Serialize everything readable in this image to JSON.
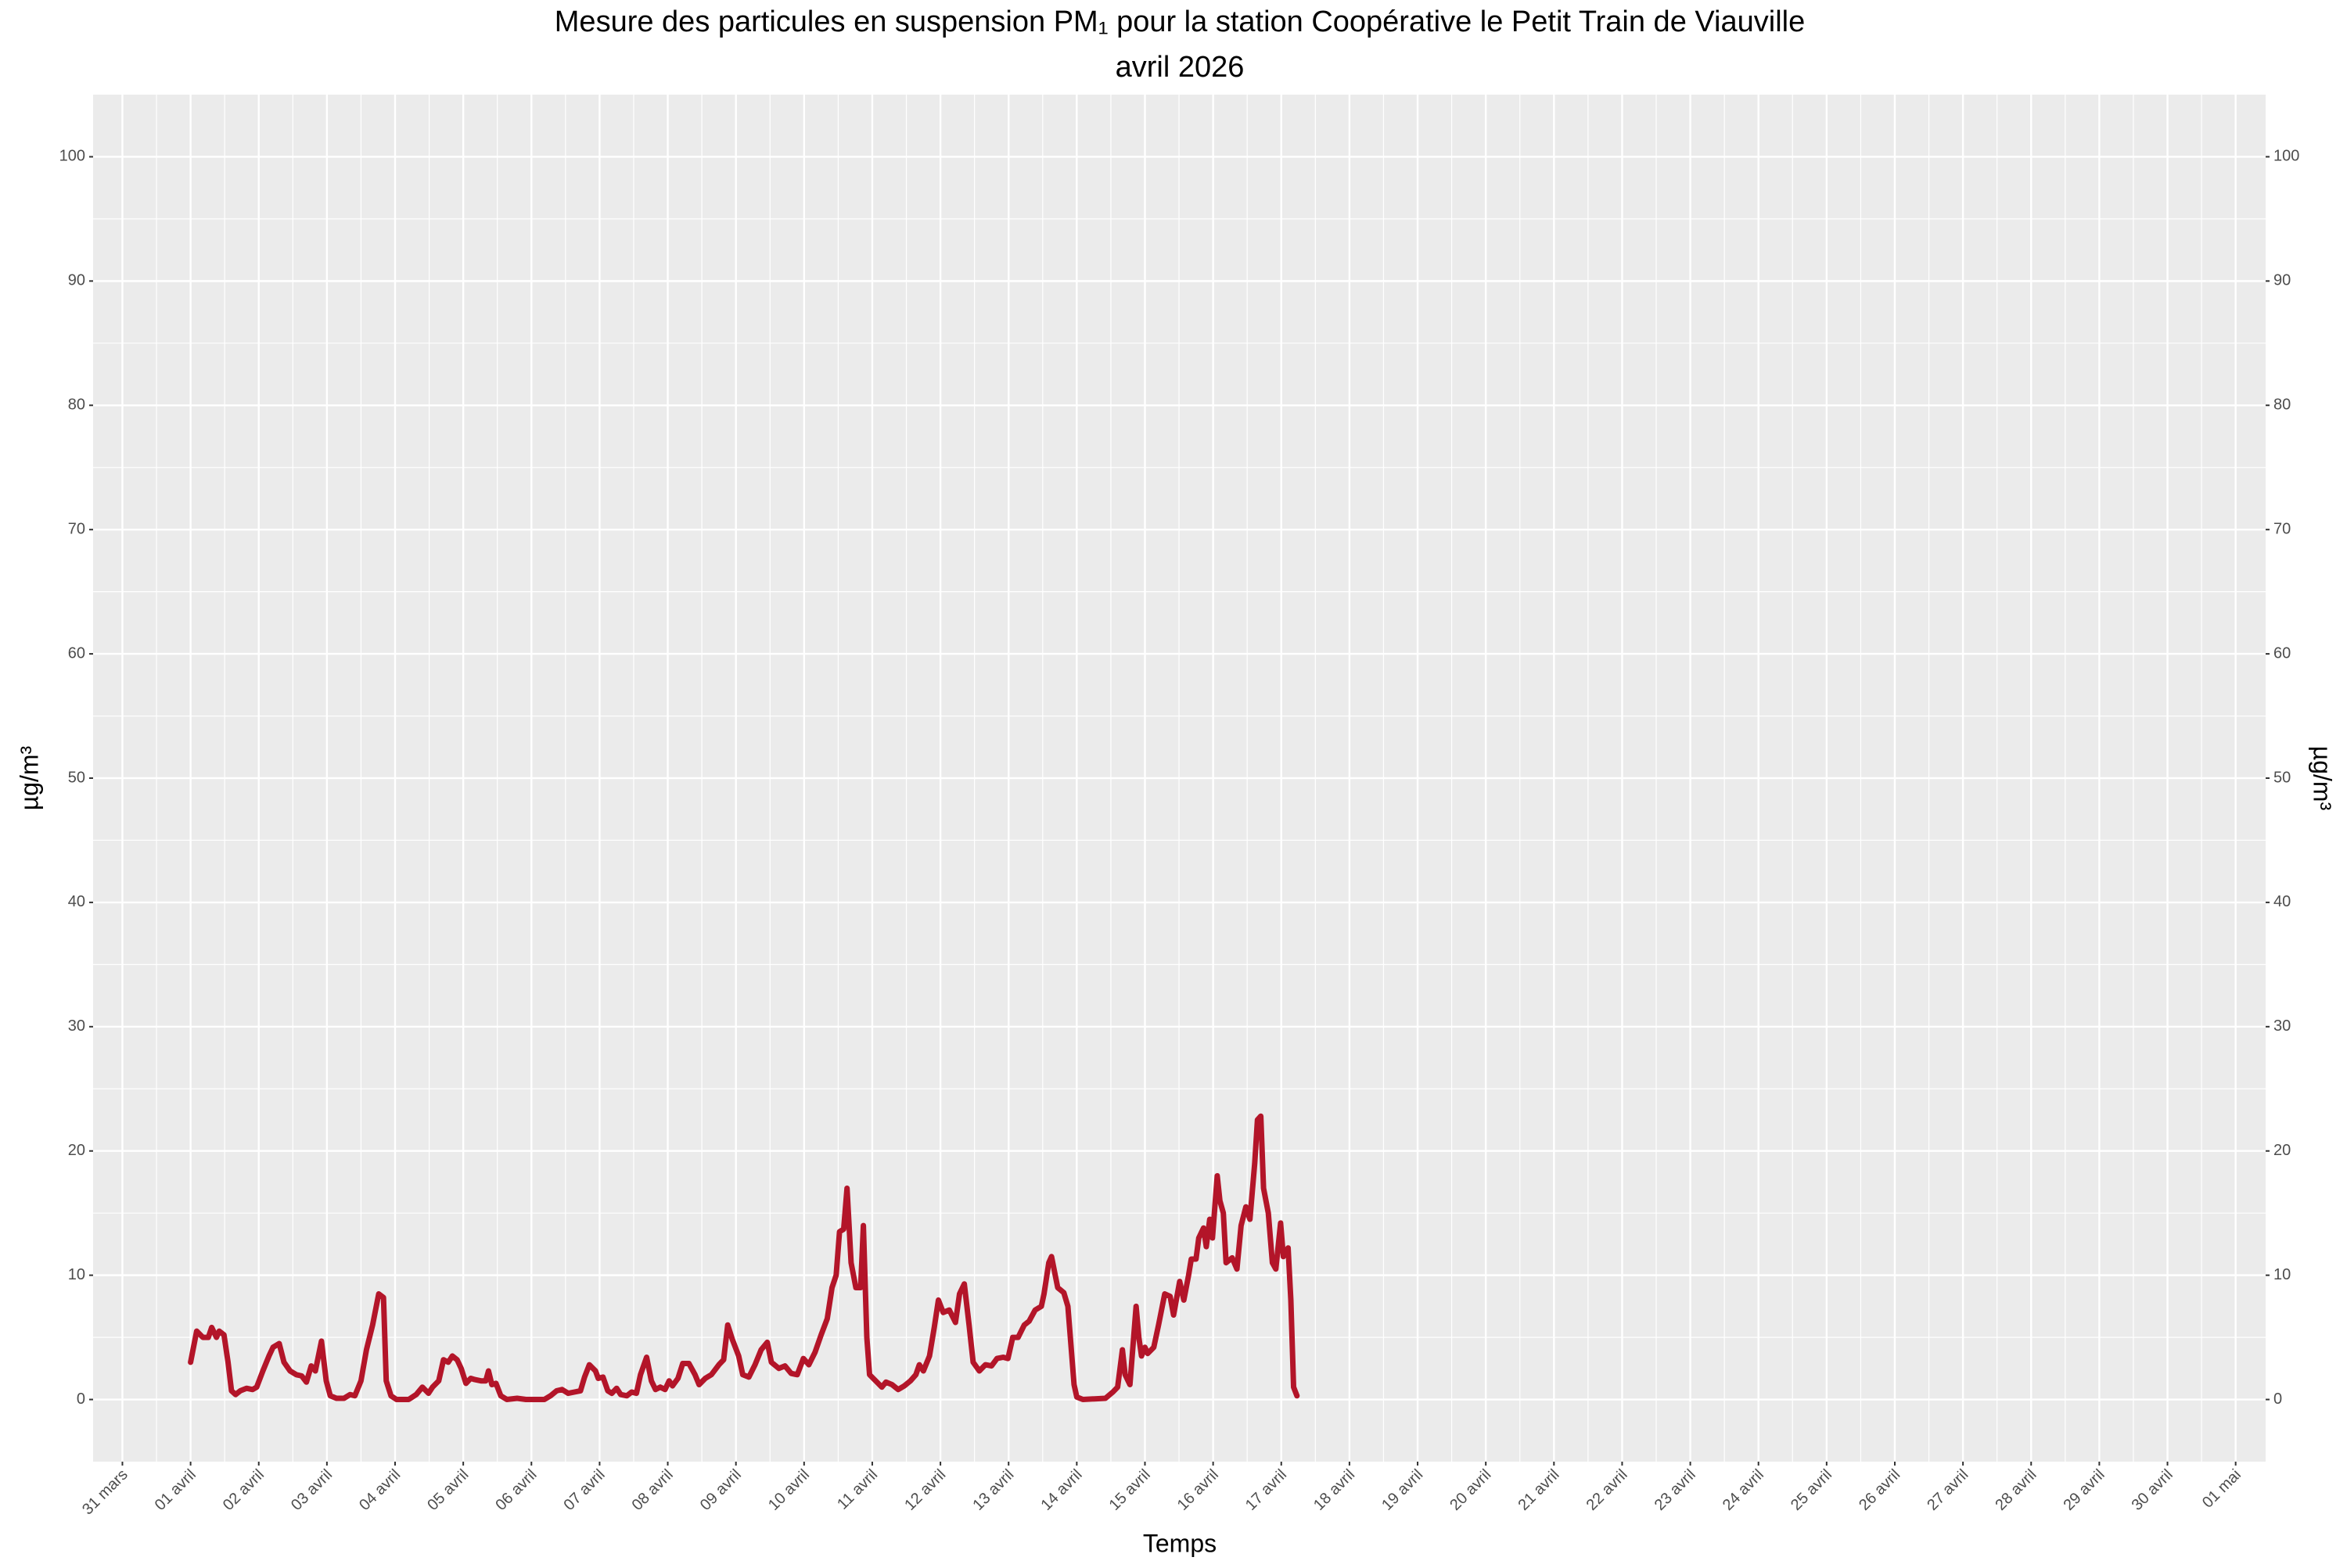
{
  "chart_data": {
    "type": "line",
    "title": "Mesure des particules en suspension  PM₁  pour la station Coopérative le Petit Train de Viauville",
    "subtitle": "avril 2026",
    "x_label": "Temps",
    "y_label": "µg/m³",
    "y2_label": "µg/m³",
    "color": "#b31529",
    "grid": true,
    "xlim": [
      -1.43,
      30.44
    ],
    "ylim": [
      -5,
      105
    ],
    "y2lim": [
      -5,
      105
    ],
    "yticks": [
      0,
      10,
      20,
      30,
      40,
      50,
      60,
      70,
      80,
      90,
      100
    ],
    "y2ticks": [
      0,
      10,
      20,
      30,
      40,
      50,
      60,
      70,
      80,
      90,
      100
    ],
    "xticks": [
      {
        "value": -1,
        "label": "31 mars"
      },
      {
        "value": 0,
        "label": "01 avril"
      },
      {
        "value": 1,
        "label": "02 avril"
      },
      {
        "value": 2,
        "label": "03 avril"
      },
      {
        "value": 3,
        "label": "04 avril"
      },
      {
        "value": 4,
        "label": "05 avril"
      },
      {
        "value": 5,
        "label": "06 avril"
      },
      {
        "value": 6,
        "label": "07 avril"
      },
      {
        "value": 7,
        "label": "08 avril"
      },
      {
        "value": 8,
        "label": "09 avril"
      },
      {
        "value": 9,
        "label": "10 avril"
      },
      {
        "value": 10,
        "label": "11 avril"
      },
      {
        "value": 11,
        "label": "12 avril"
      },
      {
        "value": 12,
        "label": "13 avril"
      },
      {
        "value": 13,
        "label": "14 avril"
      },
      {
        "value": 14,
        "label": "15 avril"
      },
      {
        "value": 15,
        "label": "16 avril"
      },
      {
        "value": 16,
        "label": "17 avril"
      },
      {
        "value": 17,
        "label": "18 avril"
      },
      {
        "value": 18,
        "label": "19 avril"
      },
      {
        "value": 19,
        "label": "20 avril"
      },
      {
        "value": 20,
        "label": "21 avril"
      },
      {
        "value": 21,
        "label": "22 avril"
      },
      {
        "value": 22,
        "label": "23 avril"
      },
      {
        "value": 23,
        "label": "24 avril"
      },
      {
        "value": 24,
        "label": "25 avril"
      },
      {
        "value": 25,
        "label": "26 avril"
      },
      {
        "value": 26,
        "label": "27 avril"
      },
      {
        "value": 27,
        "label": "28 avril"
      },
      {
        "value": 28,
        "label": "29 avril"
      },
      {
        "value": 29,
        "label": "30 avril"
      },
      {
        "value": 30,
        "label": "01 mai"
      }
    ],
    "x": [
      0,
      0.09,
      0.18,
      0.26,
      0.31,
      0.38,
      0.42,
      0.49,
      0.55,
      0.6,
      0.66,
      0.73,
      0.82,
      0.91,
      0.97,
      1.06,
      1.15,
      1.21,
      1.3,
      1.37,
      1.46,
      1.55,
      1.63,
      1.7,
      1.77,
      1.83,
      1.92,
      1.99,
      2.05,
      2.14,
      2.25,
      2.34,
      2.41,
      2.5,
      2.58,
      2.67,
      2.76,
      2.83,
      2.87,
      2.94,
      3.02,
      3.2,
      3.31,
      3.4,
      3.49,
      3.55,
      3.64,
      3.71,
      3.78,
      3.84,
      3.91,
      3.97,
      4.04,
      4.11,
      4.17,
      4.26,
      4.33,
      4.37,
      4.42,
      4.48,
      4.55,
      4.64,
      4.79,
      4.92,
      5.19,
      5.28,
      5.37,
      5.45,
      5.54,
      5.63,
      5.72,
      5.78,
      5.85,
      5.94,
      5.98,
      6.05,
      6.12,
      6.18,
      6.25,
      6.31,
      6.4,
      6.47,
      6.54,
      6.6,
      6.69,
      6.76,
      6.82,
      6.89,
      6.96,
      7.02,
      7.07,
      7.15,
      7.22,
      7.31,
      7.4,
      7.46,
      7.55,
      7.64,
      7.75,
      7.82,
      7.88,
      7.95,
      8.04,
      8.1,
      8.19,
      8.28,
      8.37,
      8.46,
      8.52,
      8.63,
      8.72,
      8.81,
      8.9,
      8.99,
      9.07,
      9.16,
      9.25,
      9.34,
      9.41,
      9.47,
      9.52,
      9.58,
      9.63,
      9.69,
      9.76,
      9.83,
      9.87,
      9.92,
      9.96,
      10.05,
      10.14,
      10.2,
      10.29,
      10.38,
      10.47,
      10.56,
      10.64,
      10.69,
      10.75,
      10.84,
      10.91,
      10.97,
      11.04,
      11.13,
      11.22,
      11.28,
      11.35,
      11.42,
      11.48,
      11.57,
      11.66,
      11.75,
      11.83,
      11.92,
      11.99,
      12.06,
      12.14,
      12.23,
      12.3,
      12.39,
      12.48,
      12.52,
      12.59,
      12.63,
      12.72,
      12.81,
      12.87,
      12.92,
      12.96,
      13,
      13.09,
      13.42,
      13.53,
      13.6,
      13.67,
      13.71,
      13.78,
      13.87,
      13.91,
      13.95,
      14,
      14.04,
      14.13,
      14.2,
      14.29,
      14.37,
      14.42,
      14.51,
      14.57,
      14.64,
      14.68,
      14.75,
      14.79,
      14.86,
      14.9,
      14.95,
      14.99,
      15.06,
      15.1,
      15.15,
      15.19,
      15.28,
      15.35,
      15.41,
      15.48,
      15.54,
      15.61,
      15.65,
      15.7,
      15.74,
      15.81,
      15.87,
      15.92,
      15.99,
      16.03,
      16.1,
      16.14,
      16.18,
      16.23
    ],
    "values": [
      3,
      5.5,
      5,
      5,
      5.8,
      5,
      5.5,
      5.2,
      3,
      0.7,
      0.4,
      0.7,
      0.9,
      0.8,
      1,
      2.3,
      3.5,
      4.2,
      4.5,
      3,
      2.3,
      2,
      1.9,
      1.4,
      2.7,
      2.3,
      4.7,
      1.5,
      0.3,
      0.1,
      0.1,
      0.4,
      0.3,
      1.5,
      4,
      6,
      8.5,
      8.2,
      1.5,
      0.3,
      0,
      0,
      0.4,
      1,
      0.5,
      1,
      1.5,
      3.2,
      3,
      3.5,
      3.2,
      2.5,
      1.3,
      1.7,
      1.6,
      1.5,
      1.5,
      2.3,
      1.2,
      1.3,
      0.3,
      0,
      0.1,
      0,
      0,
      0.3,
      0.7,
      0.8,
      0.5,
      0.6,
      0.7,
      1.8,
      2.8,
      2.3,
      1.7,
      1.8,
      0.7,
      0.5,
      0.9,
      0.4,
      0.3,
      0.6,
      0.5,
      2,
      3.4,
      1.5,
      0.8,
      1,
      0.8,
      1.5,
      1.1,
      1.7,
      2.9,
      2.9,
      2,
      1.2,
      1.7,
      2,
      2.8,
      3.2,
      6,
      4.8,
      3.5,
      2,
      1.8,
      2.8,
      4,
      4.6,
      3,
      2.5,
      2.7,
      2.1,
      2,
      3.3,
      2.8,
      3.8,
      5.2,
      6.5,
      9,
      10,
      13.5,
      13.7,
      17,
      11,
      9,
      9,
      14,
      5,
      2,
      1.5,
      1,
      1.4,
      1.2,
      0.8,
      1.1,
      1.5,
      2,
      2.8,
      2.3,
      3.5,
      5.8,
      8,
      7,
      7.2,
      6.2,
      8.5,
      9.3,
      6,
      3,
      2.3,
      2.8,
      2.7,
      3.3,
      3.4,
      3.3,
      5,
      5,
      6,
      6.3,
      7.2,
      7.5,
      8.5,
      11,
      11.5,
      9,
      8.6,
      7.5,
      4,
      1.2,
      0.2,
      0,
      0.1,
      0.6,
      1,
      4,
      2,
      1.2,
      7.5,
      5,
      3.5,
      4.2,
      3.7,
      4.2,
      6,
      8.5,
      8.3,
      6.8,
      9.5,
      8,
      10,
      11.3,
      11.3,
      13,
      13.8,
      12.3,
      14.5,
      13,
      18,
      16,
      15,
      11,
      11.4,
      10.5,
      14,
      15.5,
      14.5,
      19,
      22.5,
      22.8,
      17,
      15,
      11,
      10.5,
      14.2,
      11.5,
      12.2,
      8,
      1,
      0.3
    ]
  }
}
